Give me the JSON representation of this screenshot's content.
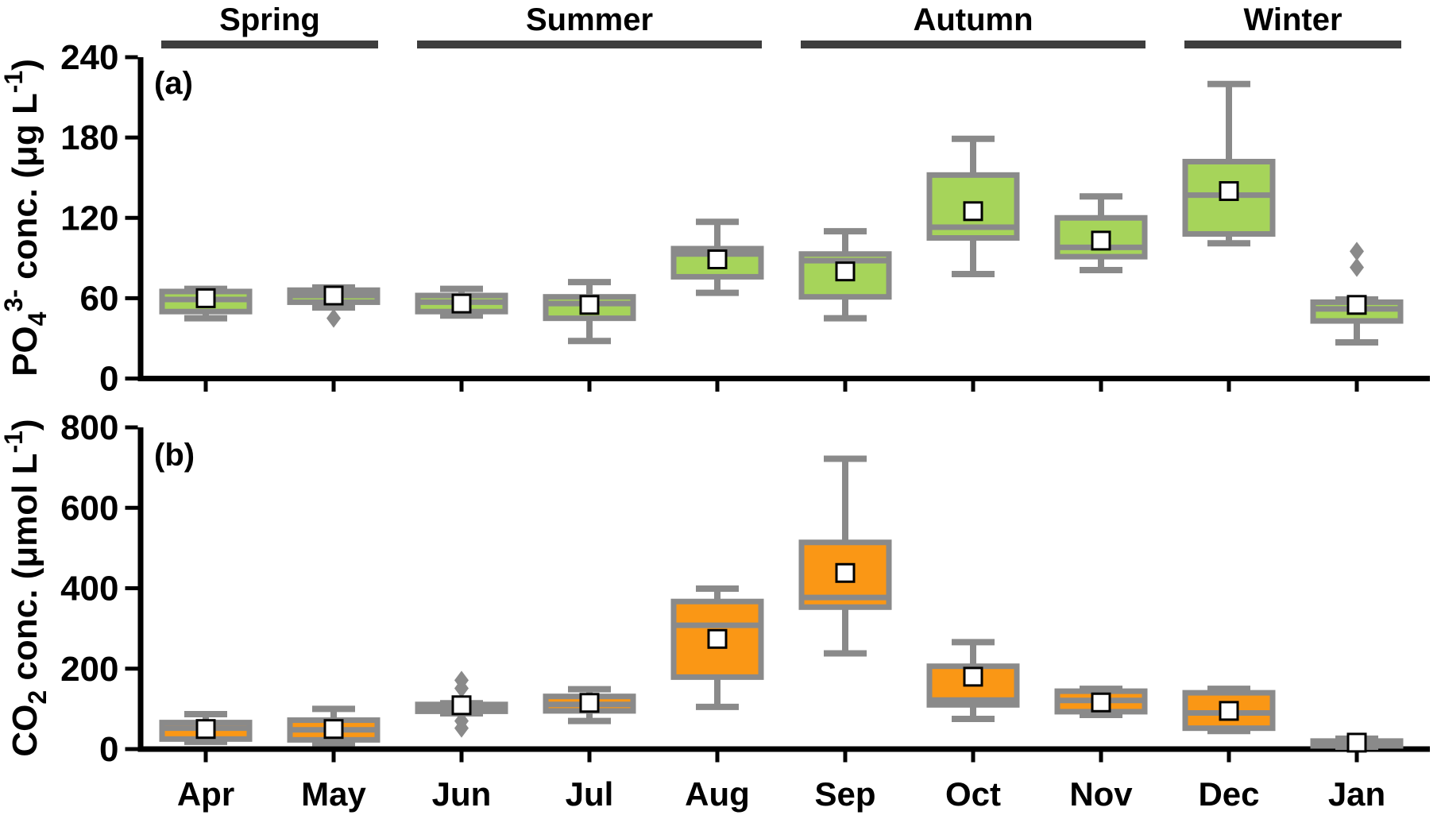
{
  "figure": {
    "panel_a_label": "(a)",
    "panel_b_label": "(b)"
  },
  "season_bands": [
    {
      "label": "Spring",
      "start_month": "Apr",
      "end_month": "May"
    },
    {
      "label": "Summer",
      "start_month": "Jun",
      "end_month": "Aug"
    },
    {
      "label": "Autumn",
      "start_month": "Sep",
      "end_month": "Nov"
    },
    {
      "label": "Winter",
      "start_month": "Dec",
      "end_month": "Jan"
    }
  ],
  "style": {
    "box_border": "#8A8A8A",
    "whisker": "#8A8A8A",
    "median": "#8A8A8A",
    "outlier": "#8A8A8A",
    "mean_fill": "#FFFFFF",
    "mean_border": "#000000",
    "season_bar": "#3D3D3D",
    "season_text": "#3D3D3D",
    "axis": "#000000",
    "green_fill": "#A6D45A",
    "orange_fill": "#FA9715"
  },
  "chart_data": [
    {
      "type": "boxplot",
      "panel_label": "(a)",
      "ylabel_parts": [
        [
          "n",
          "PO"
        ],
        [
          "sub",
          "4"
        ],
        [
          "sup",
          "3-"
        ],
        [
          "n",
          " conc. (μg L"
        ],
        [
          "sup",
          "-1"
        ],
        [
          "n",
          ")"
        ]
      ],
      "categories": [
        "Apr",
        "May",
        "Jun",
        "Jul",
        "Aug",
        "Sep",
        "Oct",
        "Nov",
        "Dec",
        "Jan"
      ],
      "ylim": [
        0,
        240
      ],
      "yticks": [
        0,
        60,
        120,
        180,
        240
      ],
      "box_fill": "#A6D45A",
      "boxes": [
        {
          "label": "Apr",
          "whislo": 45,
          "q1": 50,
          "med": 59,
          "q3": 65,
          "whishi": 67,
          "mean": 60,
          "outliers": []
        },
        {
          "label": "May",
          "whislo": 53,
          "q1": 57,
          "med": 62,
          "q3": 66,
          "whishi": 68,
          "mean": 62,
          "outliers": [
            45
          ]
        },
        {
          "label": "Jun",
          "whislo": 47,
          "q1": 50,
          "med": 57,
          "q3": 62,
          "whishi": 67,
          "mean": 56,
          "outliers": []
        },
        {
          "label": "Jul",
          "whislo": 28,
          "q1": 45,
          "med": 56,
          "q3": 61,
          "whishi": 72,
          "mean": 55,
          "outliers": []
        },
        {
          "label": "Aug",
          "whislo": 64,
          "q1": 76,
          "med": 93,
          "q3": 97,
          "whishi": 117,
          "mean": 89,
          "outliers": []
        },
        {
          "label": "Sep",
          "whislo": 45,
          "q1": 61,
          "med": 88,
          "q3": 93,
          "whishi": 110,
          "mean": 80,
          "outliers": []
        },
        {
          "label": "Oct",
          "whislo": 78,
          "q1": 105,
          "med": 113,
          "q3": 152,
          "whishi": 179,
          "mean": 125,
          "outliers": []
        },
        {
          "label": "Nov",
          "whislo": 81,
          "q1": 91,
          "med": 98,
          "q3": 120,
          "whishi": 136,
          "mean": 103,
          "outliers": []
        },
        {
          "label": "Dec",
          "whislo": 101,
          "q1": 108,
          "med": 137,
          "q3": 162,
          "whishi": 220,
          "mean": 140,
          "outliers": []
        },
        {
          "label": "Jan",
          "whislo": 27,
          "q1": 43,
          "med": 52,
          "q3": 57,
          "whishi": 59,
          "mean": 55,
          "outliers": [
            83,
            95
          ]
        }
      ]
    },
    {
      "type": "boxplot",
      "panel_label": "(b)",
      "ylabel_parts": [
        [
          "n",
          "CO"
        ],
        [
          "sub",
          "2"
        ],
        [
          "n",
          " conc. (μmol L"
        ],
        [
          "sup",
          "-1"
        ],
        [
          "n",
          ")"
        ]
      ],
      "categories": [
        "Apr",
        "May",
        "Jun",
        "Jul",
        "Aug",
        "Sep",
        "Oct",
        "Nov",
        "Dec",
        "Jan"
      ],
      "ylim": [
        0,
        800
      ],
      "yticks": [
        0,
        200,
        400,
        600,
        800
      ],
      "box_fill": "#FA9715",
      "boxes": [
        {
          "label": "Apr",
          "whislo": 18,
          "q1": 25,
          "med": 52,
          "q3": 66,
          "whishi": 87,
          "mean": 50,
          "outliers": []
        },
        {
          "label": "May",
          "whislo": 15,
          "q1": 23,
          "med": 48,
          "q3": 72,
          "whishi": 100,
          "mean": 50,
          "outliers": []
        },
        {
          "label": "Jun",
          "whislo": 89,
          "q1": 94,
          "med": 105,
          "q3": 111,
          "whishi": 114,
          "mean": 109,
          "outliers": [
            171,
            151,
            70,
            52
          ]
        },
        {
          "label": "Jul",
          "whislo": 70,
          "q1": 95,
          "med": 111,
          "q3": 131,
          "whishi": 149,
          "mean": 115,
          "outliers": []
        },
        {
          "label": "Aug",
          "whislo": 105,
          "q1": 179,
          "med": 308,
          "q3": 367,
          "whishi": 399,
          "mean": 274,
          "outliers": []
        },
        {
          "label": "Sep",
          "whislo": 238,
          "q1": 353,
          "med": 377,
          "q3": 514,
          "whishi": 722,
          "mean": 438,
          "outliers": []
        },
        {
          "label": "Oct",
          "whislo": 75,
          "q1": 110,
          "med": 122,
          "q3": 206,
          "whishi": 266,
          "mean": 180,
          "outliers": []
        },
        {
          "label": "Nov",
          "whislo": 85,
          "q1": 93,
          "med": 121,
          "q3": 144,
          "whishi": 150,
          "mean": 116,
          "outliers": []
        },
        {
          "label": "Dec",
          "whislo": 45,
          "q1": 52,
          "med": 90,
          "q3": 140,
          "whishi": 150,
          "mean": 95,
          "outliers": []
        },
        {
          "label": "Jan",
          "whislo": 6,
          "q1": 8,
          "med": 14,
          "q3": 20,
          "whishi": 26,
          "mean": 16,
          "outliers": []
        }
      ]
    }
  ]
}
